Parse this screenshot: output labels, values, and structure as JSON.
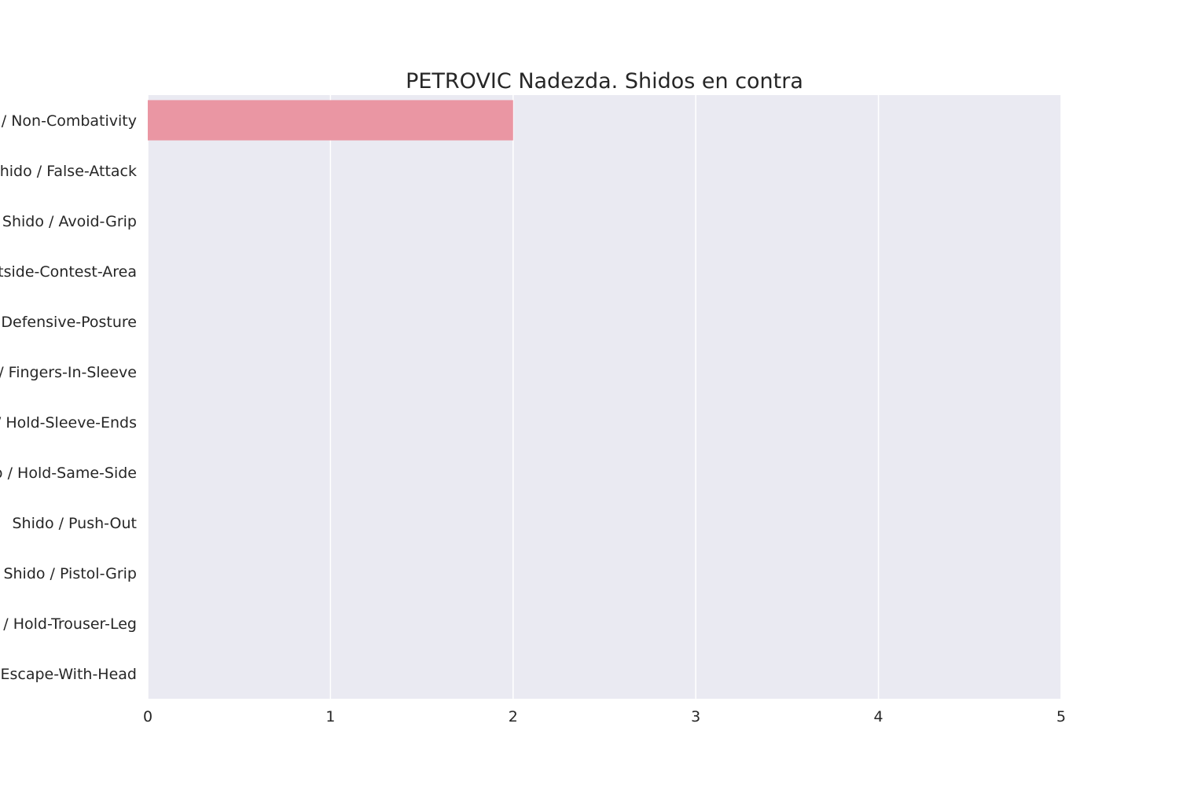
{
  "chart_data": {
    "type": "bar",
    "orientation": "horizontal",
    "title": "PETROVIC Nadezda. Shidos en contra",
    "xlabel": "",
    "ylabel": "",
    "xlim": [
      0,
      5
    ],
    "xticks": [
      "0",
      "1",
      "2",
      "3",
      "4",
      "5"
    ],
    "grid": true,
    "categories": [
      "Shido / Non-Combativity",
      "Shido / False-Attack",
      "Shido / Avoid-Grip",
      "Shido / Outside-Contest-Area",
      "Shido / Defensive-Posture",
      "Shido / Fingers-In-Sleeve",
      "Shido / Hold-Sleeve-Ends",
      "Shido / Hold-Same-Side",
      "Shido / Push-Out",
      "Shido / Pistol-Grip",
      "Shido / Hold-Trouser-Leg",
      "Shido / Escape-With-Head"
    ],
    "values": [
      2,
      0,
      0,
      0,
      0,
      0,
      0,
      0,
      0,
      0,
      0,
      0
    ],
    "colors": {
      "bar": "#ea96a3",
      "plot_background": "#eaeaf2",
      "grid": "#ffffff",
      "text": "#262626"
    }
  }
}
